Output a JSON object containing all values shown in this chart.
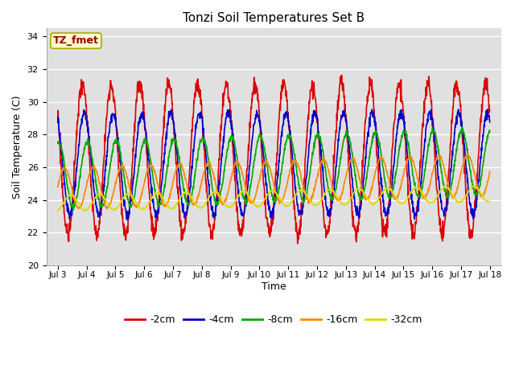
{
  "title": "Tonzi Soil Temperatures Set B",
  "xlabel": "Time",
  "ylabel": "Soil Temperature (C)",
  "annotation": "TZ_fmet",
  "annotation_color": "#990000",
  "annotation_bg": "#ffffcc",
  "annotation_border": "#aaa800",
  "xlim_days": [
    2.6,
    18.4
  ],
  "ylim": [
    20,
    34.5
  ],
  "yticks": [
    20,
    22,
    24,
    26,
    28,
    30,
    32,
    34
  ],
  "xtick_days": [
    3,
    4,
    5,
    6,
    7,
    8,
    9,
    10,
    11,
    12,
    13,
    14,
    15,
    16,
    17,
    18
  ],
  "xtick_labels": [
    "Jul 3",
    "Jul 4",
    "Jul 5",
    "Jul 6",
    "Jul 7",
    "Jul 8",
    "Jul 9",
    "Jul 10",
    "Jul 11",
    "Jul 12",
    "Jul 13",
    "Jul 14",
    "Jul 15",
    "Jul 16",
    "Jul 17",
    "Jul 18"
  ],
  "series_colors": [
    "#dd0000",
    "#0000cc",
    "#00aa00",
    "#ff8800",
    "#dddd00"
  ],
  "series_labels": [
    "-2cm",
    "-4cm",
    "-8cm",
    "-16cm",
    "-32cm"
  ],
  "linewidth": 1.2,
  "fig_bg": "#ffffff",
  "plot_bg": "#e0e0e0",
  "grid_color": "#ffffff",
  "start_day": 3.0,
  "end_day": 18.0,
  "n_points": 1500
}
